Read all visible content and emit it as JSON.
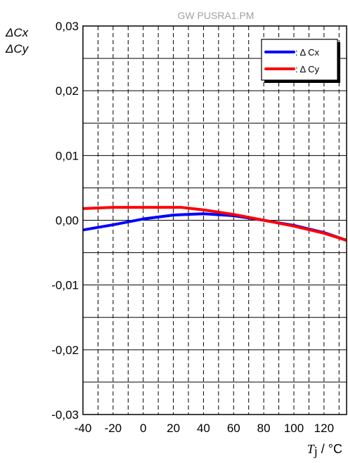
{
  "watermark": "GW PUSRA1.PM",
  "chart_data": {
    "type": "line",
    "ylabel_lines": [
      "ΔCx",
      "ΔCy"
    ],
    "xlabel_symbol": "T",
    "xlabel_subscript": "j",
    "xlabel_unit": " / °C",
    "xlim": [
      -40,
      135
    ],
    "ylim": [
      -0.03,
      0.03
    ],
    "xticks": [
      -40,
      -20,
      0,
      20,
      40,
      60,
      80,
      100,
      120
    ],
    "xtick_labels": [
      "-40",
      "-20",
      "0",
      "20",
      "40",
      "60",
      "80",
      "100",
      "120"
    ],
    "yticks": [
      -0.03,
      -0.02,
      -0.01,
      0.0,
      0.01,
      0.02,
      0.03
    ],
    "ytick_labels": [
      "-0,03",
      "-0,02",
      "-0,01",
      "0,00",
      "0,01",
      "0,02",
      "0,03"
    ],
    "grid": true,
    "legend_position": "top-right",
    "series": [
      {
        "name": ": Δ Cx",
        "color": "#0000ff",
        "x": [
          -40,
          -20,
          0,
          20,
          40,
          60,
          80,
          100,
          120,
          135
        ],
        "y": [
          -0.0015,
          -0.0007,
          0.0002,
          0.0008,
          0.001,
          0.0007,
          0.0,
          -0.0008,
          -0.0019,
          -0.0031
        ]
      },
      {
        "name": ": Δ Cy",
        "color": "#ff0000",
        "x": [
          -40,
          -20,
          0,
          20,
          25,
          40,
          60,
          80,
          100,
          120,
          135
        ],
        "y": [
          0.0018,
          0.002,
          0.002,
          0.002,
          0.002,
          0.0016,
          0.0009,
          0.0,
          -0.0009,
          -0.002,
          -0.0031
        ]
      }
    ]
  }
}
